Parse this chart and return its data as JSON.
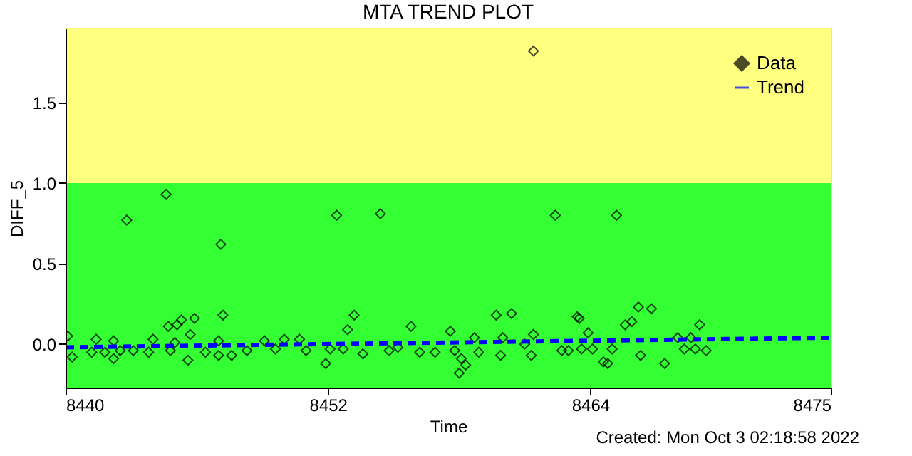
{
  "chart_data": {
    "type": "scatter",
    "title": "MTA TREND PLOT",
    "xlabel": "Time",
    "ylabel": "DIFF_5",
    "xlim": [
      8440,
      8475
    ],
    "xticks": [
      8440,
      8452,
      8464,
      8475
    ],
    "ylim": [
      -0.27,
      1.96
    ],
    "yticks": [
      {
        "value": 0,
        "label": "0.0"
      },
      {
        "value": 0.5,
        "label": "0.5"
      },
      {
        "value": 1,
        "label": "1.0"
      },
      {
        "value": 1.5,
        "label": "1.5"
      }
    ],
    "grid": false,
    "legend": "top right",
    "bands": [
      {
        "axis": "y",
        "from": -0.27,
        "to": 1.0,
        "color": "#33ff33"
      },
      {
        "axis": "y",
        "from": 1.0,
        "to": 1.96,
        "color": "#ffff80"
      }
    ],
    "annotations": [
      "Created: Mon Oct  3 02:18:58 2022"
    ],
    "series": [
      {
        "name": "Data",
        "color": "#000000",
        "marker": "diamond",
        "x": [
          8440.1,
          8440.3,
          8441.2,
          8441.4,
          8441.8,
          8442.2,
          8442.2,
          8442.5,
          8442.8,
          8443.1,
          8443.8,
          8444.0,
          8444.6,
          8444.7,
          8444.8,
          8445.0,
          8445.1,
          8445.3,
          8445.6,
          8445.7,
          8445.9,
          8446.4,
          8447.0,
          8447.0,
          8447.1,
          8447.2,
          8447.6,
          8448.3,
          8449.1,
          8449.6,
          8450.0,
          8450.7,
          8451.0,
          8451.9,
          8452.1,
          8452.4,
          8452.7,
          8452.9,
          8453.2,
          8453.6,
          8454.4,
          8454.8,
          8455.2,
          8455.8,
          8456.2,
          8456.9,
          8457.6,
          8457.8,
          8458.1,
          8458.0,
          8458.3,
          8458.7,
          8458.9,
          8459.7,
          8459.9,
          8460.0,
          8460.4,
          8461.0,
          8461.3,
          8461.4,
          8461.4,
          8462.4,
          8462.7,
          8463.0,
          8463.4,
          8463.5,
          8463.6,
          8463.9,
          8464.1,
          8464.6,
          8464.8,
          8465.0,
          8465.2,
          8465.6,
          8465.9,
          8466.2,
          8466.3,
          8466.8,
          8467.4,
          8468.0,
          8468.3,
          8468.6,
          8468.8,
          8469.0,
          8469.3
        ],
        "values": [
          0.05,
          -0.08,
          -0.05,
          0.03,
          -0.05,
          0.02,
          -0.09,
          -0.04,
          0.77,
          -0.04,
          -0.05,
          0.03,
          0.93,
          0.11,
          -0.04,
          0.01,
          0.12,
          0.15,
          -0.1,
          0.06,
          0.16,
          -0.05,
          -0.07,
          0.02,
          0.62,
          0.18,
          -0.07,
          -0.04,
          0.02,
          -0.03,
          0.03,
          0.03,
          -0.04,
          -0.12,
          -0.03,
          0.8,
          -0.03,
          0.09,
          0.18,
          -0.06,
          0.81,
          -0.04,
          -0.02,
          0.11,
          -0.05,
          -0.05,
          0.08,
          -0.04,
          -0.09,
          -0.18,
          -0.13,
          0.04,
          -0.05,
          0.18,
          -0.07,
          0.04,
          0.19,
          0.0,
          -0.07,
          1.82,
          0.06,
          0.8,
          -0.04,
          -0.04,
          0.17,
          0.16,
          -0.03,
          0.07,
          -0.03,
          -0.11,
          -0.12,
          -0.03,
          0.8,
          0.12,
          0.14,
          0.23,
          -0.07,
          0.22,
          -0.12,
          0.04,
          -0.03,
          0.04,
          -0.03,
          0.12,
          -0.04
        ]
      },
      {
        "name": "Trend",
        "type": "line",
        "color": "#0000ff",
        "line_style": "dashed",
        "x": [
          8440,
          8475
        ],
        "values": [
          -0.02,
          0.04
        ]
      }
    ]
  }
}
